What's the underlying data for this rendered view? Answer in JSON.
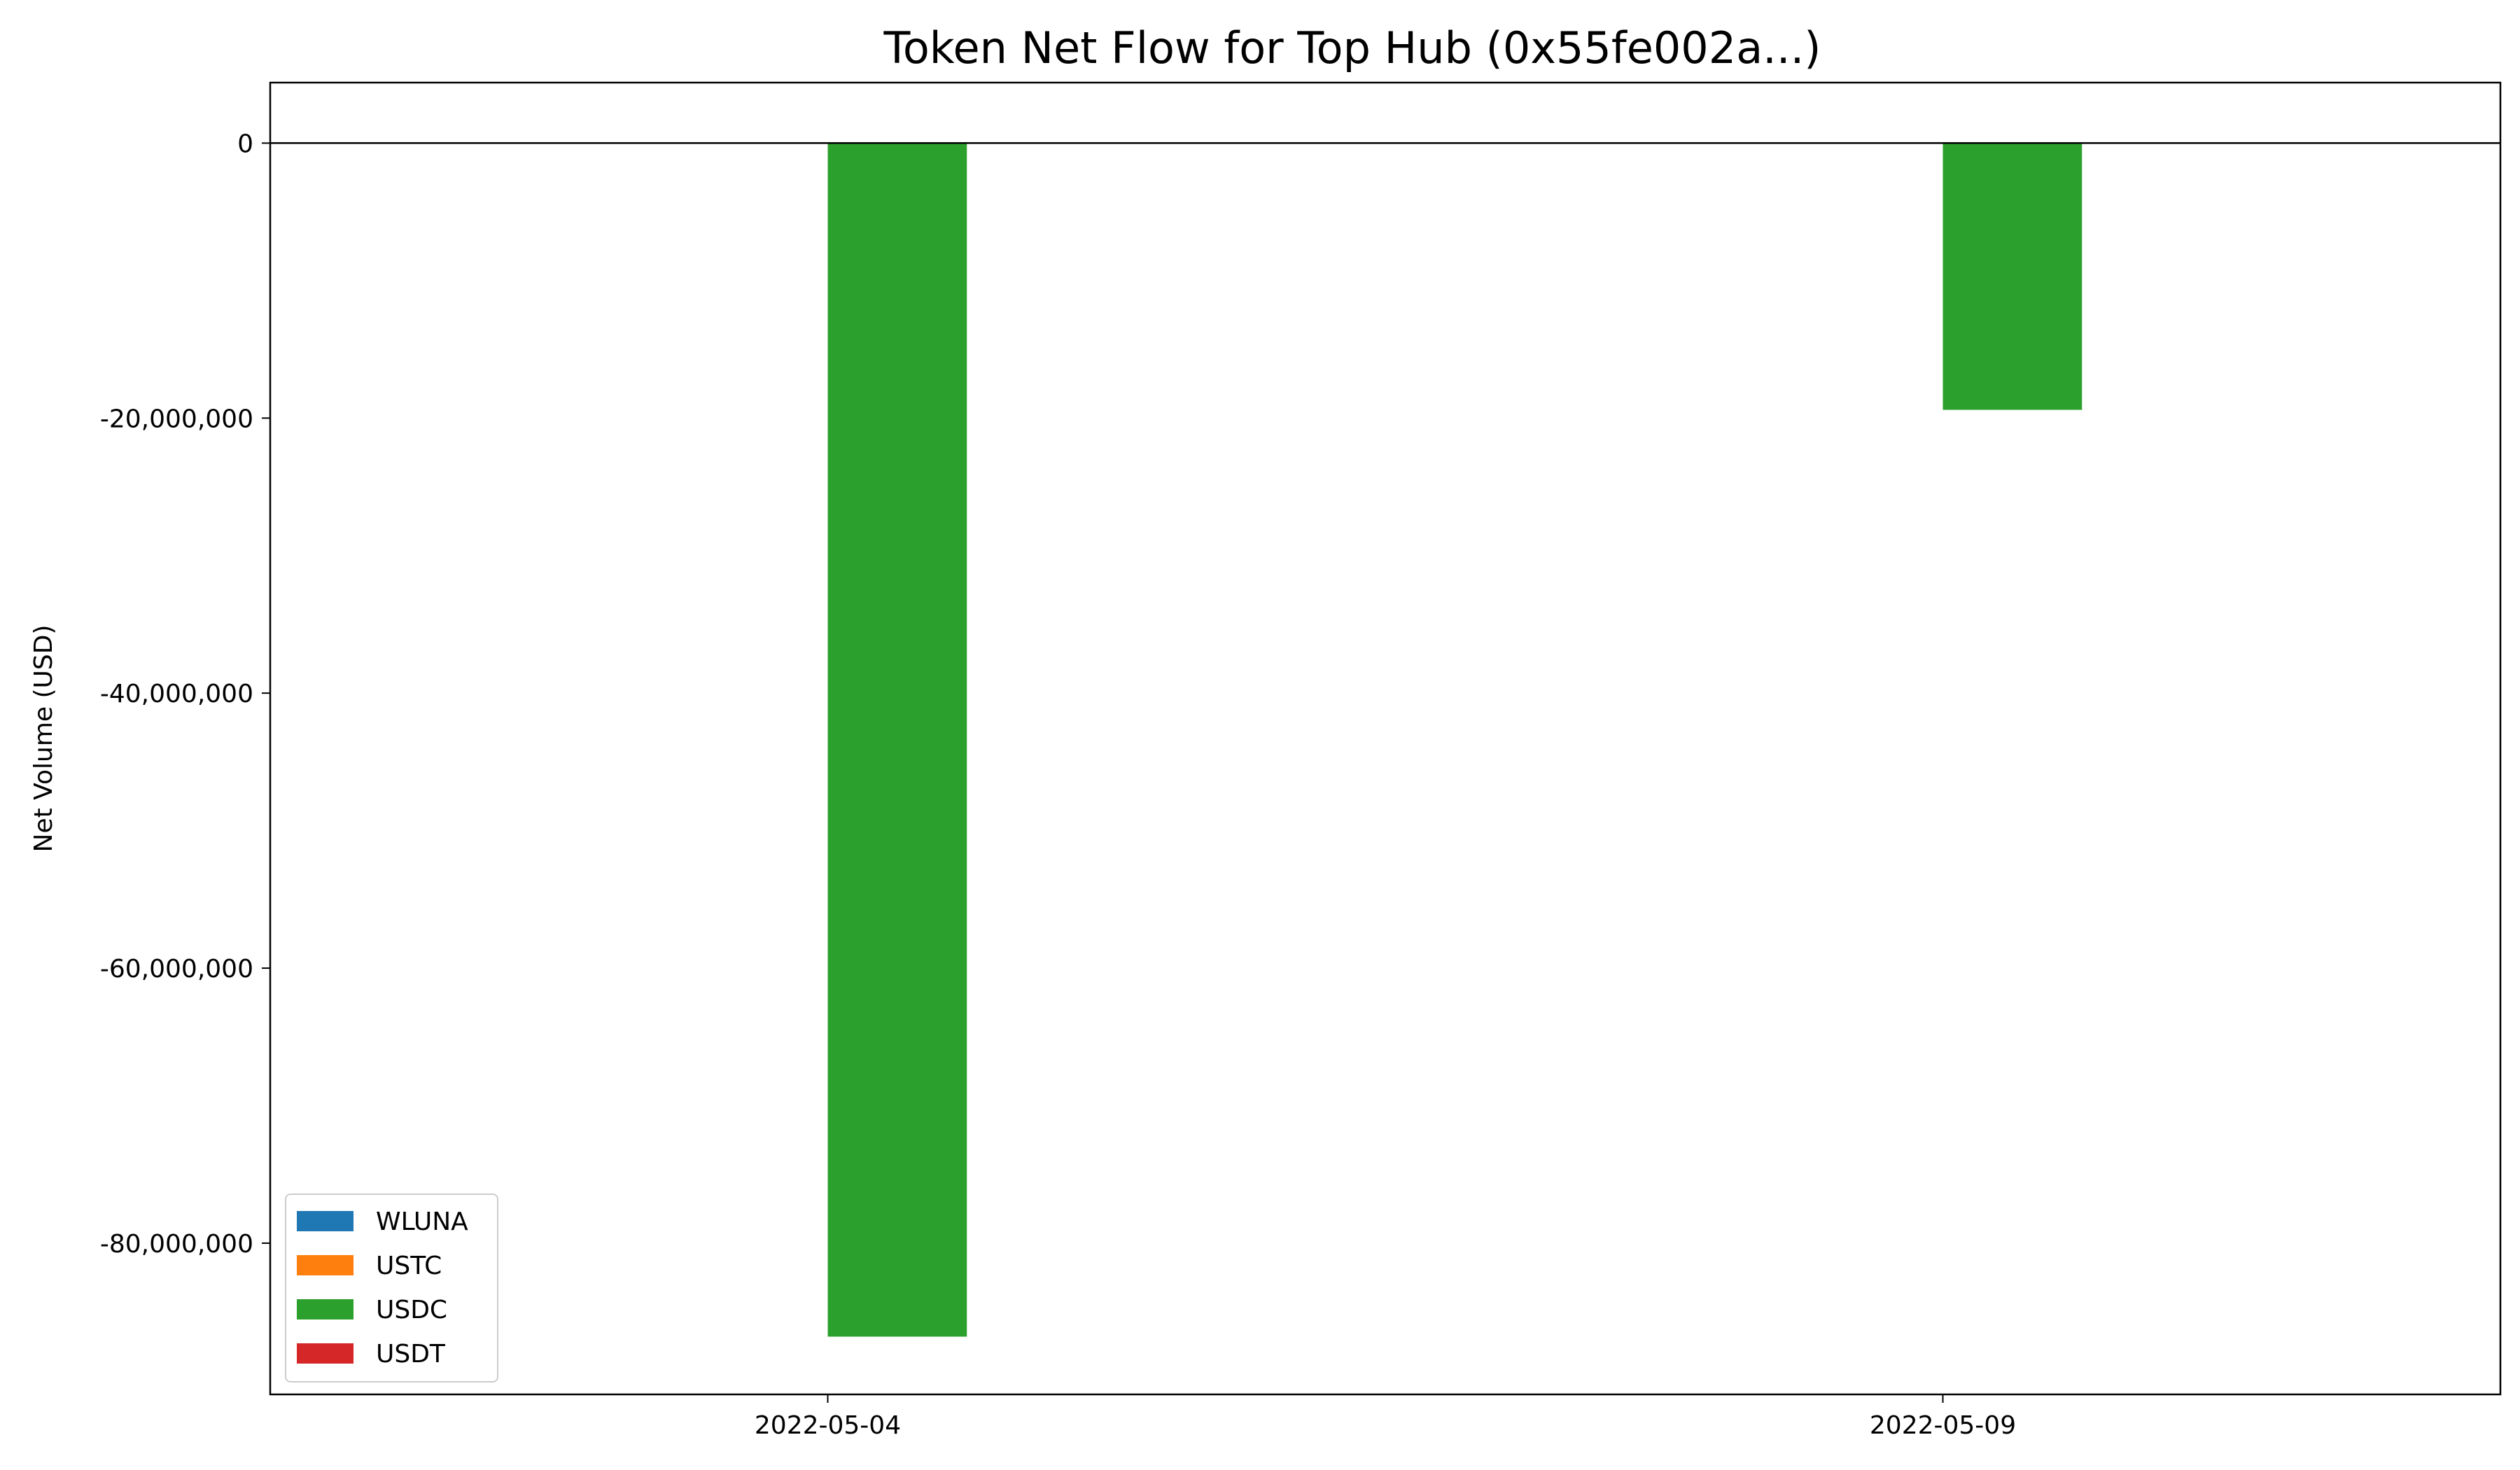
{
  "chart_data": {
    "type": "bar",
    "title": "Token Net Flow for Top Hub (0x55fe002a...)",
    "xlabel": "",
    "ylabel": "Net Volume (USD)",
    "categories": [
      "2022-05-04",
      "2022-05-09"
    ],
    "series": [
      {
        "name": "WLUNA",
        "color": "#1f77b4",
        "values": [
          0,
          0
        ]
      },
      {
        "name": "USTC",
        "color": "#ff7f0e",
        "values": [
          0,
          0
        ]
      },
      {
        "name": "USDC",
        "color": "#2ca02c",
        "values": [
          -86800000,
          -19400000
        ]
      },
      {
        "name": "USDT",
        "color": "#d62728",
        "values": [
          0,
          0
        ]
      }
    ],
    "ylim": [
      -91000000,
      4400000
    ],
    "yticks": [
      0,
      -20000000,
      -40000000,
      -60000000,
      -80000000
    ],
    "ytick_labels": [
      "0",
      "-20,000,000",
      "-40,000,000",
      "-60,000,000",
      "-80,000,000"
    ],
    "zero_line": true,
    "grid": false,
    "legend_position": "lower left"
  }
}
